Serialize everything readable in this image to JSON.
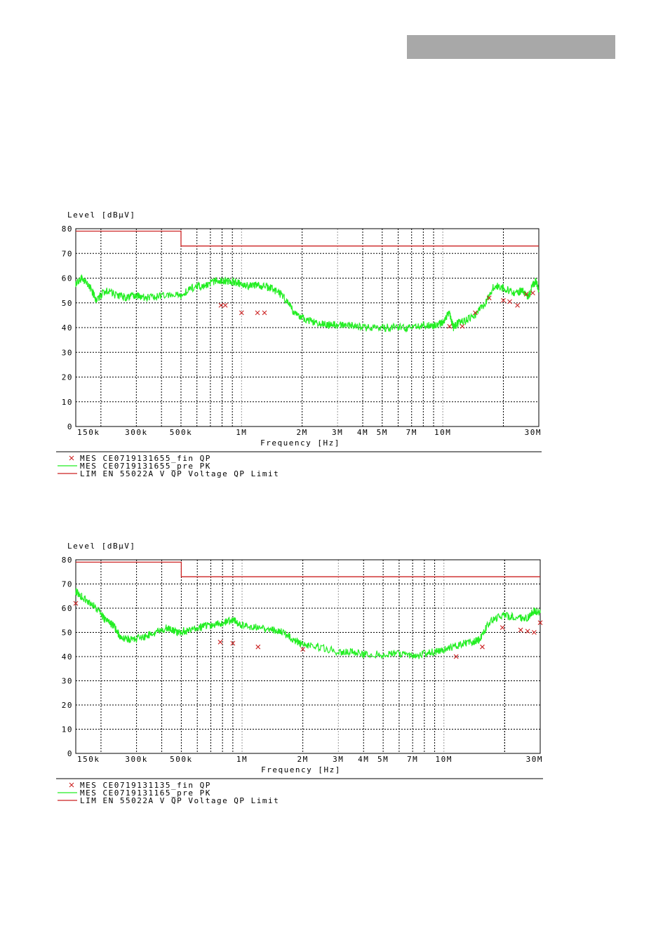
{
  "header": {
    "bar_color": "#a8a8a8"
  },
  "colors": {
    "limit": "#cc2222",
    "peak": "#22ee22",
    "qp_mark": "#cc2222",
    "grid": "#000000"
  },
  "chart_data": [
    {
      "type": "line",
      "ylabel": "Level [dBµV]",
      "xlabel": "Frequency [Hz]",
      "x_scale": "log",
      "xlim": [
        150000,
        30000000
      ],
      "ylim": [
        0,
        80
      ],
      "y_ticks": [
        "0",
        "10",
        "20",
        "30",
        "40",
        "50",
        "60",
        "70",
        "80"
      ],
      "x_ticks": [
        {
          "label": "150k",
          "value": 150000
        },
        {
          "label": "300k",
          "value": 300000
        },
        {
          "label": "500k",
          "value": 500000
        },
        {
          "label": "1M",
          "value": 1000000
        },
        {
          "label": "2M",
          "value": 2000000
        },
        {
          "label": "3M",
          "value": 3000000
        },
        {
          "label": "4M",
          "value": 4000000
        },
        {
          "label": "5M",
          "value": 5000000
        },
        {
          "label": "7M",
          "value": 7000000
        },
        {
          "label": "10M",
          "value": 10000000
        },
        {
          "label": "30M",
          "value": 30000000
        }
      ],
      "grid": true,
      "legend": [
        {
          "marker": "x",
          "text": "MES   CE0719131655_fin QP"
        },
        {
          "marker": "line-green",
          "text": "MES   CE0719131655_pre PK"
        },
        {
          "marker": "line-red",
          "text": "LIM   EN 55022A V QP        Voltage QP Limit"
        }
      ],
      "limit": [
        [
          150000,
          79
        ],
        [
          500000,
          79
        ],
        [
          500000,
          73
        ],
        [
          30000000,
          73
        ]
      ],
      "peak_trace": [
        [
          150000,
          58
        ],
        [
          160000,
          60
        ],
        [
          175000,
          57
        ],
        [
          190000,
          51
        ],
        [
          210000,
          55
        ],
        [
          240000,
          53
        ],
        [
          270000,
          52
        ],
        [
          300000,
          53
        ],
        [
          350000,
          52
        ],
        [
          420000,
          53
        ],
        [
          500000,
          53
        ],
        [
          560000,
          56
        ],
        [
          650000,
          57
        ],
        [
          750000,
          59
        ],
        [
          850000,
          59
        ],
        [
          950000,
          58
        ],
        [
          1050000,
          57
        ],
        [
          1200000,
          57
        ],
        [
          1400000,
          56
        ],
        [
          1600000,
          53
        ],
        [
          1800000,
          47
        ],
        [
          2000000,
          44
        ],
        [
          2300000,
          42
        ],
        [
          2700000,
          41
        ],
        [
          3000000,
          41
        ],
        [
          3500000,
          41
        ],
        [
          4000000,
          40
        ],
        [
          5000000,
          40
        ],
        [
          6000000,
          40
        ],
        [
          7000000,
          40
        ],
        [
          8000000,
          41
        ],
        [
          9000000,
          41
        ],
        [
          10000000,
          42
        ],
        [
          10800000,
          46
        ],
        [
          11300000,
          40
        ],
        [
          12000000,
          42
        ],
        [
          14000000,
          44
        ],
        [
          16000000,
          49
        ],
        [
          18000000,
          57
        ],
        [
          20000000,
          56
        ],
        [
          23000000,
          54
        ],
        [
          25000000,
          55
        ],
        [
          26500000,
          52
        ],
        [
          28000000,
          57
        ],
        [
          29000000,
          59
        ],
        [
          30000000,
          55
        ]
      ],
      "qp_points": [
        [
          790000,
          49
        ],
        [
          830000,
          49
        ],
        [
          1000000,
          46
        ],
        [
          1200000,
          46
        ],
        [
          1300000,
          46
        ],
        [
          10800000,
          40.5
        ],
        [
          12500000,
          40.5
        ],
        [
          14500000,
          46
        ],
        [
          17000000,
          52
        ],
        [
          20000000,
          51
        ],
        [
          21500000,
          50.5
        ],
        [
          23500000,
          49
        ],
        [
          26000000,
          53.5
        ],
        [
          28000000,
          54
        ]
      ]
    },
    {
      "type": "line",
      "ylabel": "Level [dBµV]",
      "xlabel": "Frequency [Hz]",
      "x_scale": "log",
      "xlim": [
        150000,
        30000000
      ],
      "ylim": [
        0,
        80
      ],
      "y_ticks": [
        "0",
        "10",
        "20",
        "30",
        "40",
        "50",
        "60",
        "70",
        "80"
      ],
      "x_ticks": [
        {
          "label": "150k",
          "value": 150000
        },
        {
          "label": "300k",
          "value": 300000
        },
        {
          "label": "500k",
          "value": 500000
        },
        {
          "label": "1M",
          "value": 1000000
        },
        {
          "label": "2M",
          "value": 2000000
        },
        {
          "label": "3M",
          "value": 3000000
        },
        {
          "label": "4M",
          "value": 4000000
        },
        {
          "label": "5M",
          "value": 5000000
        },
        {
          "label": "7M",
          "value": 7000000
        },
        {
          "label": "10M",
          "value": 10000000
        },
        {
          "label": "30M",
          "value": 30000000
        }
      ],
      "grid": true,
      "legend": [
        {
          "marker": "x",
          "text": "MES   CE0719131135_fin QP"
        },
        {
          "marker": "line-green",
          "text": "MES   CE0719131165_pre PK"
        },
        {
          "marker": "line-red",
          "text": "LIM   EN 55022A V QP        Voltage QP Limit"
        }
      ],
      "limit": [
        [
          150000,
          79
        ],
        [
          500000,
          79
        ],
        [
          500000,
          73
        ],
        [
          30000000,
          73
        ]
      ],
      "peak_trace": [
        [
          150000,
          67
        ],
        [
          170000,
          63
        ],
        [
          190000,
          60
        ],
        [
          210000,
          55
        ],
        [
          230000,
          53
        ],
        [
          250000,
          48
        ],
        [
          280000,
          47
        ],
        [
          320000,
          48
        ],
        [
          380000,
          50
        ],
        [
          430000,
          52
        ],
        [
          480000,
          50
        ],
        [
          540000,
          51
        ],
        [
          620000,
          52
        ],
        [
          700000,
          53
        ],
        [
          800000,
          54
        ],
        [
          900000,
          55
        ],
        [
          1000000,
          53
        ],
        [
          1200000,
          52
        ],
        [
          1400000,
          51
        ],
        [
          1600000,
          50
        ],
        [
          1800000,
          47
        ],
        [
          2000000,
          45
        ],
        [
          2400000,
          44
        ],
        [
          3000000,
          42
        ],
        [
          3500000,
          42
        ],
        [
          4000000,
          41
        ],
        [
          5000000,
          41
        ],
        [
          6000000,
          41
        ],
        [
          7000000,
          40
        ],
        [
          8000000,
          41
        ],
        [
          9000000,
          42
        ],
        [
          10000000,
          43
        ],
        [
          12000000,
          45
        ],
        [
          14000000,
          46
        ],
        [
          15000000,
          47
        ],
        [
          17000000,
          55
        ],
        [
          20000000,
          57
        ],
        [
          23000000,
          56
        ],
        [
          26000000,
          56
        ],
        [
          28000000,
          59
        ],
        [
          30000000,
          58
        ]
      ],
      "qp_points": [
        [
          150000,
          62
        ],
        [
          780000,
          46
        ],
        [
          900000,
          45.5
        ],
        [
          1200000,
          44
        ],
        [
          2000000,
          43
        ],
        [
          11500000,
          40
        ],
        [
          15500000,
          44
        ],
        [
          19500000,
          52
        ],
        [
          24000000,
          51
        ],
        [
          26000000,
          50.5
        ],
        [
          28000000,
          50
        ],
        [
          30000000,
          54
        ]
      ]
    }
  ]
}
